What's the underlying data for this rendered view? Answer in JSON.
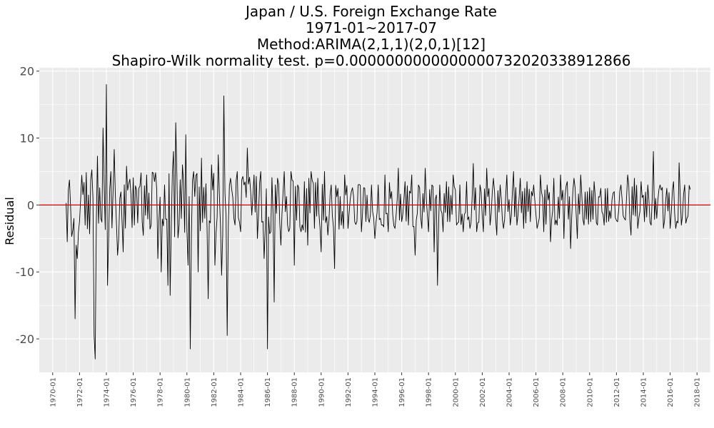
{
  "chart_data": {
    "type": "line",
    "title_lines": [
      "Japan / U.S. Foreign Exchange Rate",
      "1971-01~2017-07",
      "Method:ARIMA(2,1,1)(2,0,1)[12]",
      "Shapiro-Wilk normality test. p=0.0000000000000000732020338912866"
    ],
    "xlabel": "",
    "ylabel": "Residual",
    "x_range": [
      "1969-01",
      "2018-12"
    ],
    "ylim": [
      -25,
      20.5
    ],
    "y_ticks": [
      -20,
      -10,
      0,
      10,
      20
    ],
    "x_ticks": [
      "1970-01",
      "1972-01",
      "1974-01",
      "1976-01",
      "1978-01",
      "1980-01",
      "1982-01",
      "1984-01",
      "1986-01",
      "1988-01",
      "1990-01",
      "1992-01",
      "1994-01",
      "1996-01",
      "1998-01",
      "2000-01",
      "2002-01",
      "2004-01",
      "2006-01",
      "2008-01",
      "2010-01",
      "2012-01",
      "2014-01",
      "2016-01",
      "2018-01"
    ],
    "reference_line": {
      "y": 0,
      "color": "#cc0000"
    },
    "series_color": "#000000",
    "grid": true,
    "series": [
      {
        "start": "1971-01",
        "end": "2017-07",
        "points": [
          [
            "1971-01",
            0.3
          ],
          [
            "1971-05",
            -0.3
          ],
          [
            "1971-08",
            -2.0
          ],
          [
            "1971-09",
            -17.0
          ],
          [
            "1971-10",
            -6.0
          ],
          [
            "1971-11",
            -8.0
          ],
          [
            "1972-02",
            1.0
          ],
          [
            "1972-06",
            -3.0
          ],
          [
            "1972-09",
            1.5
          ],
          [
            "1973-01",
            1.0
          ],
          [
            "1973-02",
            -19.5
          ],
          [
            "1973-03",
            -23.0
          ],
          [
            "1973-05",
            7.3
          ],
          [
            "1973-08",
            -2.0
          ],
          [
            "1973-10",
            11.5
          ],
          [
            "1973-11",
            3.0
          ],
          [
            "1974-01",
            18.0
          ],
          [
            "1974-02",
            -12.0
          ],
          [
            "1974-05",
            5.0
          ],
          [
            "1974-08",
            8.3
          ],
          [
            "1974-11",
            -7.5
          ],
          [
            "1975-01",
            1.0
          ],
          [
            "1975-04",
            -7.0
          ],
          [
            "1975-07",
            5.8
          ],
          [
            "1975-11",
            1.5
          ],
          [
            "1976-02",
            -3.0
          ],
          [
            "1976-06",
            2.5
          ],
          [
            "1976-09",
            -2.5
          ],
          [
            "1977-01",
            4.5
          ],
          [
            "1977-05",
            -3.0
          ],
          [
            "1977-08",
            3.5
          ],
          [
            "1977-11",
            -8.0
          ],
          [
            "1978-02",
            -10.0
          ],
          [
            "1978-05",
            3.0
          ],
          [
            "1978-08",
            -12.0
          ],
          [
            "1978-10",
            -13.5
          ],
          [
            "1979-01",
            8.0
          ],
          [
            "1979-03",
            12.3
          ],
          [
            "1979-06",
            -3.0
          ],
          [
            "1979-09",
            6.0
          ],
          [
            "1979-12",
            10.5
          ],
          [
            "1980-02",
            -9.0
          ],
          [
            "1980-04",
            -21.5
          ],
          [
            "1980-07",
            5.0
          ],
          [
            "1980-11",
            -10.0
          ],
          [
            "1981-02",
            7.0
          ],
          [
            "1981-05",
            -2.0
          ],
          [
            "1981-08",
            -14.0
          ],
          [
            "1981-11",
            6.0
          ],
          [
            "1982-02",
            -9.0
          ],
          [
            "1982-05",
            7.5
          ],
          [
            "1982-08",
            -10.5
          ],
          [
            "1982-10",
            16.3
          ],
          [
            "1983-01",
            -19.5
          ],
          [
            "1983-04",
            4.0
          ],
          [
            "1983-07",
            -2.0
          ],
          [
            "1983-10",
            5.0
          ],
          [
            "1984-01",
            -4.0
          ],
          [
            "1984-04",
            3.0
          ],
          [
            "1984-07",
            8.5
          ],
          [
            "1984-10",
            2.0
          ],
          [
            "1985-01",
            4.5
          ],
          [
            "1985-04",
            -5.0
          ],
          [
            "1985-07",
            5.0
          ],
          [
            "1985-10",
            -8.0
          ],
          [
            "1986-01",
            -21.5
          ],
          [
            "1986-04",
            -4.0
          ],
          [
            "1986-07",
            -14.5
          ],
          [
            "1986-10",
            4.0
          ],
          [
            "1987-01",
            -6.0
          ],
          [
            "1987-04",
            5.0
          ],
          [
            "1987-07",
            -3.0
          ],
          [
            "1987-10",
            5.0
          ],
          [
            "1988-01",
            -9.0
          ],
          [
            "1988-04",
            3.0
          ],
          [
            "1988-07",
            -4.0
          ],
          [
            "1988-10",
            3.5
          ],
          [
            "1989-01",
            -6.0
          ],
          [
            "1989-04",
            5.0
          ],
          [
            "1989-07",
            -3.5
          ],
          [
            "1989-10",
            4.0
          ],
          [
            "1990-01",
            -7.0
          ],
          [
            "1990-04",
            5.0
          ],
          [
            "1990-07",
            -4.5
          ],
          [
            "1990-10",
            3.0
          ],
          [
            "1991-01",
            -9.5
          ],
          [
            "1991-04",
            2.5
          ],
          [
            "1991-07",
            -3.0
          ],
          [
            "1991-10",
            4.5
          ],
          [
            "1992-01",
            -3.5
          ],
          [
            "1992-04",
            2.0
          ],
          [
            "1992-07",
            -2.5
          ],
          [
            "1992-10",
            3.0
          ],
          [
            "1993-01",
            -4.0
          ],
          [
            "1993-04",
            2.5
          ],
          [
            "1993-07",
            -2.0
          ],
          [
            "1993-10",
            3.0
          ],
          [
            "1994-01",
            -5.0
          ],
          [
            "1994-04",
            3.0
          ],
          [
            "1994-07",
            -3.0
          ],
          [
            "1994-10",
            4.5
          ],
          [
            "1995-01",
            -4.0
          ],
          [
            "1995-04",
            2.0
          ],
          [
            "1995-07",
            -3.5
          ],
          [
            "1995-10",
            5.5
          ],
          [
            "1996-01",
            -2.5
          ],
          [
            "1996-04",
            3.5
          ],
          [
            "1996-07",
            -3.0
          ],
          [
            "1996-10",
            4.5
          ],
          [
            "1997-01",
            -7.5
          ],
          [
            "1997-04",
            3.0
          ],
          [
            "1997-07",
            -3.5
          ],
          [
            "1997-10",
            5.5
          ],
          [
            "1998-01",
            -4.0
          ],
          [
            "1998-04",
            3.0
          ],
          [
            "1998-06",
            -7.0
          ],
          [
            "1998-09",
            -12.0
          ],
          [
            "1998-11",
            3.0
          ],
          [
            "1999-02",
            -4.0
          ],
          [
            "1999-05",
            3.5
          ],
          [
            "1999-08",
            -2.5
          ],
          [
            "1999-11",
            4.5
          ],
          [
            "2000-02",
            -3.0
          ],
          [
            "2000-05",
            3.0
          ],
          [
            "2000-08",
            -4.0
          ],
          [
            "2000-11",
            3.5
          ],
          [
            "2001-02",
            -3.5
          ],
          [
            "2001-05",
            6.2
          ],
          [
            "2001-08",
            -4.0
          ],
          [
            "2001-11",
            3.0
          ],
          [
            "2002-02",
            -4.0
          ],
          [
            "2002-05",
            5.5
          ],
          [
            "2002-08",
            -3.0
          ],
          [
            "2002-11",
            4.0
          ],
          [
            "2003-02",
            -4.5
          ],
          [
            "2003-05",
            3.0
          ],
          [
            "2003-08",
            -3.5
          ],
          [
            "2003-11",
            4.5
          ],
          [
            "2004-02",
            -3.0
          ],
          [
            "2004-05",
            5.0
          ],
          [
            "2004-08",
            -3.0
          ],
          [
            "2004-11",
            4.0
          ],
          [
            "2005-02",
            -3.5
          ],
          [
            "2005-05",
            3.5
          ],
          [
            "2005-08",
            -2.5
          ],
          [
            "2005-11",
            3.0
          ],
          [
            "2006-02",
            -3.5
          ],
          [
            "2006-05",
            4.5
          ],
          [
            "2006-08",
            -4.0
          ],
          [
            "2006-11",
            3.0
          ],
          [
            "2007-02",
            -5.5
          ],
          [
            "2007-05",
            4.0
          ],
          [
            "2007-08",
            -3.0
          ],
          [
            "2007-11",
            4.5
          ],
          [
            "2008-02",
            -5.0
          ],
          [
            "2008-05",
            3.5
          ],
          [
            "2008-08",
            -6.5
          ],
          [
            "2008-11",
            4.0
          ],
          [
            "2009-02",
            -5.0
          ],
          [
            "2009-05",
            4.5
          ],
          [
            "2009-08",
            -3.0
          ],
          [
            "2009-11",
            2.0
          ],
          [
            "2010-02",
            -2.5
          ],
          [
            "2010-05",
            3.5
          ],
          [
            "2010-08",
            -3.0
          ],
          [
            "2010-11",
            2.5
          ],
          [
            "2011-02",
            -3.0
          ],
          [
            "2011-05",
            2.5
          ],
          [
            "2011-08",
            -2.0
          ],
          [
            "2011-11",
            2.0
          ],
          [
            "2012-02",
            -2.5
          ],
          [
            "2012-05",
            3.0
          ],
          [
            "2012-08",
            -2.0
          ],
          [
            "2012-11",
            4.5
          ],
          [
            "2013-02",
            -4.5
          ],
          [
            "2013-05",
            4.0
          ],
          [
            "2013-08",
            -3.5
          ],
          [
            "2013-11",
            3.5
          ],
          [
            "2014-02",
            -2.5
          ],
          [
            "2014-05",
            3.0
          ],
          [
            "2014-08",
            -3.0
          ],
          [
            "2014-10",
            8.0
          ],
          [
            "2015-01",
            -2.0
          ],
          [
            "2015-04",
            3.0
          ],
          [
            "2015-07",
            -3.5
          ],
          [
            "2015-10",
            2.5
          ],
          [
            "2016-01",
            -3.5
          ],
          [
            "2016-04",
            3.5
          ],
          [
            "2016-06",
            -3.5
          ],
          [
            "2016-09",
            6.3
          ],
          [
            "2016-11",
            -3.0
          ],
          [
            "2017-02",
            3.0
          ],
          [
            "2017-04",
            -2.0
          ],
          [
            "2017-07",
            2.3
          ]
        ]
      }
    ]
  }
}
